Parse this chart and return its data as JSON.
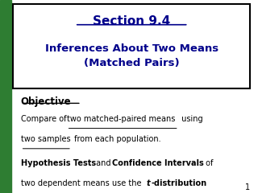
{
  "title_line1": "Section 9.4",
  "title_line2": "Inferences About Two Means\n(Matched Pairs)",
  "title_color": "#00008B",
  "bg_color": "#ffffff",
  "left_bar_color": "#2E7D32",
  "border_color": "#000000",
  "objective_label": "Objective",
  "page_number": "1",
  "fontsize_title1": 11,
  "fontsize_title2": 9.5,
  "fontsize_objective": 8.5,
  "fontsize_body": 7.0
}
